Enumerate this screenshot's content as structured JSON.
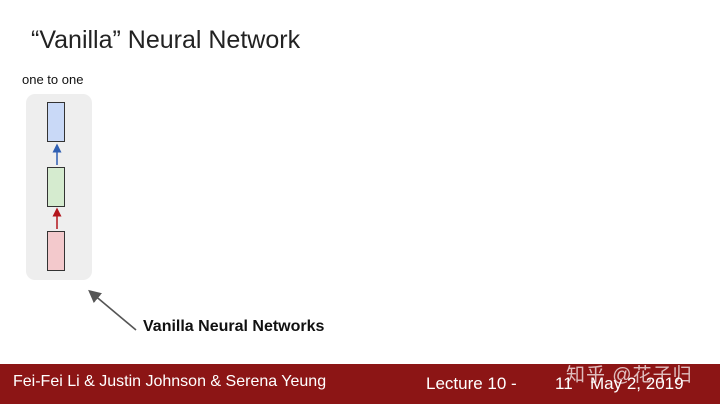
{
  "slide": {
    "title": "“Vanilla” Neural Network",
    "diagram_label": "one to one",
    "caption": "Vanilla Neural Networks"
  },
  "footer": {
    "authors": "Fei-Fei Li & Justin Johnson & Serena Yeung",
    "lecture": "Lecture 10 -",
    "page": "11",
    "date": "May 2, 2019"
  },
  "watermark": "知乎 @花子归",
  "colors": {
    "footer_bg": "#8c1515",
    "output_box": "#c9d9f7",
    "hidden_box": "#d5ebcf",
    "input_box": "#f3c9cc",
    "upper_arrow": "#2f5fb3",
    "lower_arrow": "#b3151c"
  }
}
